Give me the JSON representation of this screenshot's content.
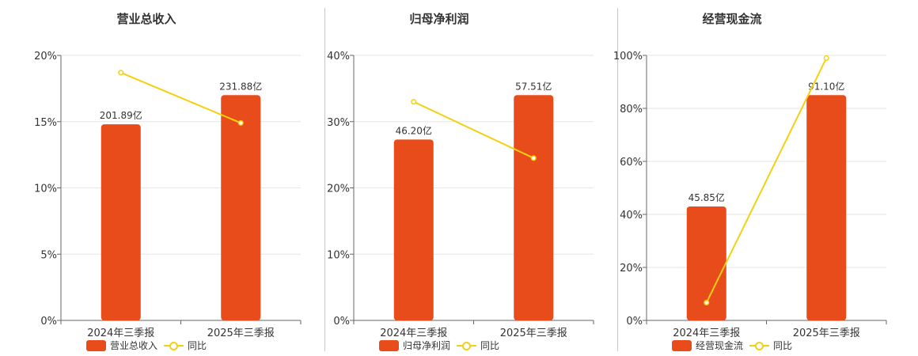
{
  "colors": {
    "bar": "#e84c1a",
    "line": "#f5d010",
    "grid": "#e6e6e6",
    "axis": "#666666",
    "text": "#333333"
  },
  "chart_data": [
    {
      "type": "bar",
      "title": "营业总收入",
      "categories": [
        "2024年三季报",
        "2025年三季报"
      ],
      "series": [
        {
          "name": "营业总收入",
          "type": "bar",
          "values": [
            14.8,
            17.0
          ],
          "labels": [
            "201.89亿",
            "231.88亿"
          ]
        },
        {
          "name": "同比",
          "type": "line",
          "values": [
            18.7,
            14.9
          ]
        }
      ],
      "ylim": [
        0,
        20
      ],
      "yticks": [
        "0%",
        "5%",
        "10%",
        "15%",
        "20%"
      ],
      "grid": true,
      "legend": "bottom"
    },
    {
      "type": "bar",
      "title": "归母净利润",
      "categories": [
        "2024年三季报",
        "2025年三季报"
      ],
      "series": [
        {
          "name": "归母净利润",
          "type": "bar",
          "values": [
            27.3,
            34.0
          ],
          "labels": [
            "46.20亿",
            "57.51亿"
          ]
        },
        {
          "name": "同比",
          "type": "line",
          "values": [
            33.0,
            24.5
          ]
        }
      ],
      "ylim": [
        0,
        40
      ],
      "yticks": [
        "0%",
        "10%",
        "20%",
        "30%",
        "40%"
      ],
      "grid": true,
      "legend": "bottom"
    },
    {
      "type": "bar",
      "title": "经营现金流",
      "categories": [
        "2024年三季报",
        "2025年三季报"
      ],
      "series": [
        {
          "name": "经营现金流",
          "type": "bar",
          "values": [
            43.0,
            85.0
          ],
          "labels": [
            "45.85亿",
            "91.10亿"
          ]
        },
        {
          "name": "同比",
          "type": "line",
          "values": [
            6.7,
            99.0
          ]
        }
      ],
      "ylim": [
        0,
        100
      ],
      "yticks": [
        "0%",
        "20%",
        "40%",
        "60%",
        "80%",
        "100%"
      ],
      "grid": true,
      "legend": "bottom"
    }
  ]
}
